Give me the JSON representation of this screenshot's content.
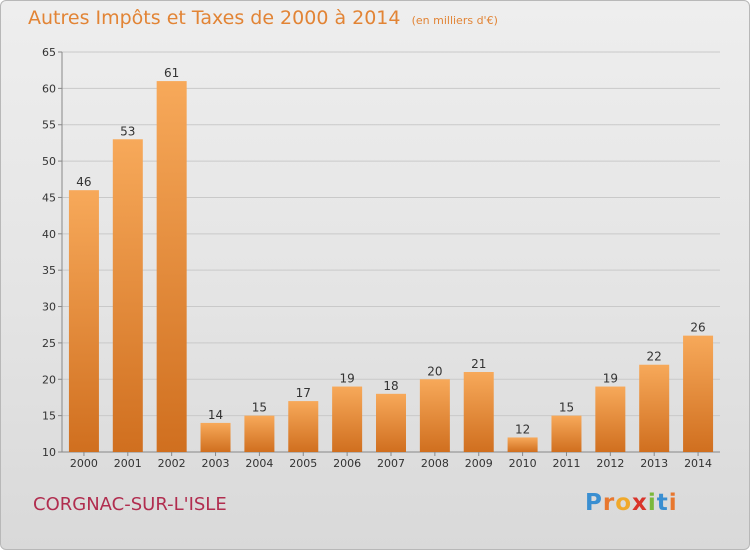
{
  "header": {
    "title": "Autres Impôts et Taxes de 2000 à 2014",
    "unit": "(en milliers d'€)"
  },
  "footer": {
    "commune": "CORGNAC-SUR-L'ISLE",
    "logo_letters": [
      "P",
      "r",
      "o",
      "x",
      "i",
      "t",
      "i"
    ],
    "logo_colors": [
      "#3a8fd1",
      "#e8772e",
      "#f0a92b",
      "#d9342b",
      "#7bb83a",
      "#3a8fd1",
      "#e8772e"
    ]
  },
  "colors": {
    "bar_light": "#f7a95a",
    "bar_dark": "#d06f1f",
    "title": "#e28435",
    "commune": "#b12d4f"
  },
  "chart_data": {
    "type": "bar",
    "categories": [
      "2000",
      "2001",
      "2002",
      "2003",
      "2004",
      "2005",
      "2006",
      "2007",
      "2008",
      "2009",
      "2010",
      "2011",
      "2012",
      "2013",
      "2014"
    ],
    "values": [
      46,
      53,
      61,
      14,
      15,
      17,
      19,
      18,
      20,
      21,
      12,
      15,
      19,
      22,
      26
    ],
    "title": "Autres Impôts et Taxes de 2000 à 2014",
    "xlabel": "",
    "ylabel": "",
    "ylim": [
      10,
      65
    ],
    "yticks": [
      10,
      15,
      20,
      25,
      30,
      35,
      40,
      45,
      50,
      55,
      60,
      65
    ],
    "grid": true,
    "data_labels": true
  }
}
